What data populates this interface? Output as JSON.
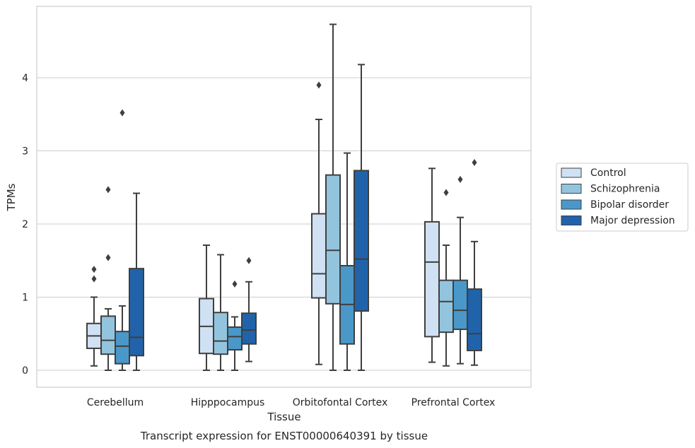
{
  "chart_data": {
    "type": "box",
    "xlabel": "Tissue",
    "ylabel": "TPMs",
    "caption": "Transcript expression for ENST00000640391 by tissue",
    "ylim": [
      -0.22,
      4.98
    ],
    "yticks": [
      0,
      1,
      2,
      3,
      4
    ],
    "grid": "horizontal",
    "legend_position": "right",
    "categories": [
      "Cerebellum",
      "Hipppocampus",
      "Orbitofontal Cortex",
      "Prefrontal Cortex"
    ],
    "series": [
      {
        "name": "Control",
        "color": "#cfe1f2",
        "boxes": [
          {
            "whislo": 0.06,
            "q1": 0.3,
            "med": 0.47,
            "q3": 0.64,
            "whishi": 1.0,
            "fliers": [
              1.38,
              1.25
            ]
          },
          {
            "whislo": 0.0,
            "q1": 0.23,
            "med": 0.6,
            "q3": 0.98,
            "whishi": 1.71,
            "fliers": []
          },
          {
            "whislo": 0.08,
            "q1": 0.99,
            "med": 1.32,
            "q3": 2.14,
            "whishi": 3.43,
            "fliers": [
              3.9
            ]
          },
          {
            "whislo": 0.11,
            "q1": 0.46,
            "med": 1.48,
            "q3": 2.03,
            "whishi": 2.76,
            "fliers": []
          }
        ]
      },
      {
        "name": "Schizophrenia",
        "color": "#93c4de",
        "boxes": [
          {
            "whislo": 0.0,
            "q1": 0.22,
            "med": 0.41,
            "q3": 0.74,
            "whishi": 0.84,
            "fliers": [
              2.47,
              1.54
            ]
          },
          {
            "whislo": 0.0,
            "q1": 0.22,
            "med": 0.4,
            "q3": 0.79,
            "whishi": 1.58,
            "fliers": []
          },
          {
            "whislo": 0.0,
            "q1": 0.91,
            "med": 1.64,
            "q3": 2.67,
            "whishi": 4.73,
            "fliers": []
          },
          {
            "whislo": 0.06,
            "q1": 0.52,
            "med": 0.94,
            "q3": 1.23,
            "whishi": 1.71,
            "fliers": [
              2.43
            ]
          }
        ]
      },
      {
        "name": "Bipolar disorder",
        "color": "#4a98c9",
        "boxes": [
          {
            "whislo": 0.0,
            "q1": 0.09,
            "med": 0.33,
            "q3": 0.53,
            "whishi": 0.88,
            "fliers": [
              3.52
            ]
          },
          {
            "whislo": 0.0,
            "q1": 0.28,
            "med": 0.46,
            "q3": 0.59,
            "whishi": 0.73,
            "fliers": [
              1.18
            ]
          },
          {
            "whislo": 0.0,
            "q1": 0.36,
            "med": 0.9,
            "q3": 1.43,
            "whishi": 2.97,
            "fliers": []
          },
          {
            "whislo": 0.09,
            "q1": 0.56,
            "med": 0.82,
            "q3": 1.23,
            "whishi": 2.09,
            "fliers": [
              2.61
            ]
          }
        ]
      },
      {
        "name": "Major depression",
        "color": "#2163aa",
        "boxes": [
          {
            "whislo": 0.0,
            "q1": 0.2,
            "med": 0.45,
            "q3": 1.39,
            "whishi": 2.42,
            "fliers": []
          },
          {
            "whislo": 0.12,
            "q1": 0.36,
            "med": 0.55,
            "q3": 0.78,
            "whishi": 1.21,
            "fliers": [
              1.5
            ]
          },
          {
            "whislo": 0.0,
            "q1": 0.81,
            "med": 1.52,
            "q3": 2.73,
            "whishi": 4.18,
            "fliers": []
          },
          {
            "whislo": 0.07,
            "q1": 0.27,
            "med": 0.5,
            "q3": 1.11,
            "whishi": 1.76,
            "fliers": [
              2.84
            ]
          }
        ]
      }
    ]
  }
}
